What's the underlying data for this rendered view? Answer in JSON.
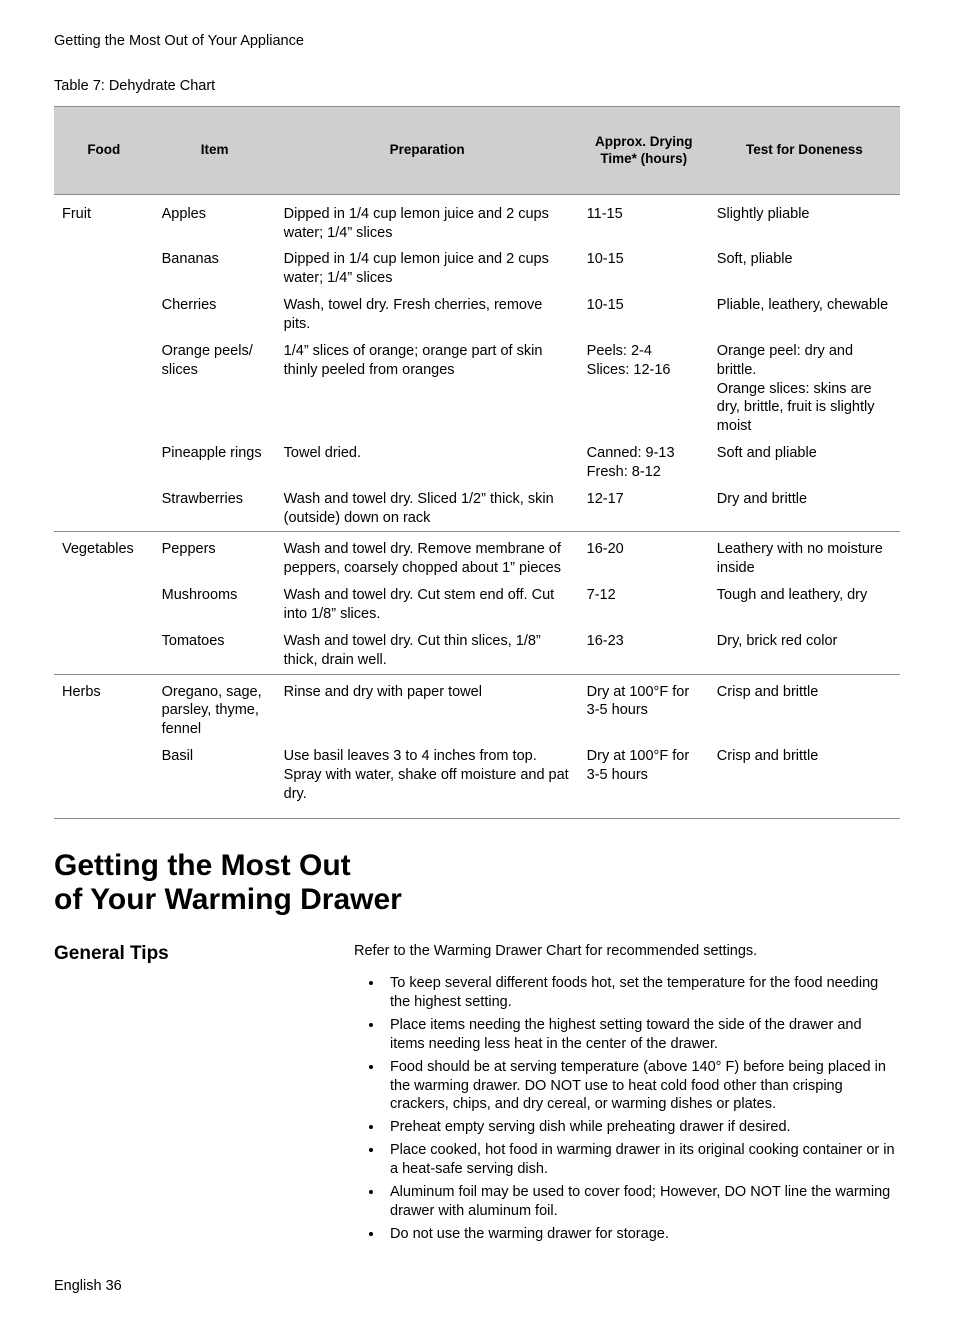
{
  "running_header": "Getting the Most Out of Your Appliance",
  "table_caption": "Table 7: Dehydrate Chart",
  "table": {
    "columns": [
      "Food",
      "Item",
      "Preparation",
      "Approx. Drying Time* (hours)",
      "Test for Doneness"
    ],
    "groups": [
      {
        "food": "Fruit",
        "rows": [
          {
            "item": "Apples",
            "prep": "Dipped in 1/4 cup lemon juice and 2 cups water; 1/4” slices",
            "time": "11-15",
            "done": "Slightly pliable"
          },
          {
            "item": "Bananas",
            "prep": "Dipped in 1/4 cup lemon juice and 2 cups water; 1/4” slices",
            "time": "10-15",
            "done": "Soft, pliable"
          },
          {
            "item": "Cherries",
            "prep": "Wash, towel dry. Fresh cherries, remove pits.",
            "time": "10-15",
            "done": "Pliable, leathery, chewable"
          },
          {
            "item": "Orange peels/ slices",
            "prep": "1/4” slices of orange; orange part of skin thinly peeled from oranges",
            "time": "Peels: 2-4\nSlices: 12-16",
            "done": "Orange peel: dry and brittle.\nOrange slices: skins are dry, brittle, fruit is slightly moist"
          },
          {
            "item": "Pineapple rings",
            "prep": "Towel dried.",
            "time": "Canned: 9-13\nFresh: 8-12",
            "done": "Soft and pliable"
          },
          {
            "item": "Strawberries",
            "prep": "Wash and towel dry. Sliced 1/2” thick, skin (outside) down on rack",
            "time": "12-17",
            "done": "Dry and brittle"
          }
        ]
      },
      {
        "food": "Vegetables",
        "rows": [
          {
            "item": "Peppers",
            "prep": "Wash and towel dry. Remove membrane of peppers, coarsely chopped about 1” pieces",
            "time": "16-20",
            "done": "Leathery with no moisture inside"
          },
          {
            "item": "Mushrooms",
            "prep": "Wash and towel dry. Cut stem end off. Cut into 1/8” slices.",
            "time": "7-12",
            "done": "Tough and leathery, dry"
          },
          {
            "item": "Tomatoes",
            "prep": "Wash and towel dry. Cut thin slices, 1/8” thick, drain well.",
            "time": "16-23",
            "done": "Dry, brick red color"
          }
        ]
      },
      {
        "food": "Herbs",
        "rows": [
          {
            "item": "Oregano, sage, parsley, thyme, fennel",
            "prep": "Rinse and dry with paper towel",
            "time": "Dry at 100°F for 3-5 hours",
            "done": "Crisp and brittle"
          },
          {
            "item": "Basil",
            "prep": "Use basil leaves 3 to 4 inches from top. Spray with water, shake off moisture and pat dry.",
            "time": "Dry at 100°F for 3-5 hours",
            "done": "Crisp and brittle"
          }
        ]
      }
    ]
  },
  "section_title": "Getting the Most Out\nof Your Warming Drawer",
  "subheading": "General Tips",
  "intro_para": "Refer to the Warming Drawer Chart for recommended settings.",
  "bullets": [
    "To keep several different foods hot, set the temperature for the food needing the highest setting.",
    "Place items needing the highest setting toward the side of the drawer and items needing less heat in the center of the drawer.",
    "Food should be at serving temperature (above 140° F) before being placed in the warming drawer. DO NOT use to heat cold food other than crisping crackers, chips, and dry cereal, or warming dishes or plates.",
    "Preheat empty serving dish while preheating drawer if desired.",
    "Place cooked, hot food in warming drawer in its original cooking container or in a heat-safe serving dish.",
    "Aluminum foil may be used to cover food; However, DO NOT line the warming drawer with aluminum foil.",
    "Do not use the warming drawer for storage."
  ],
  "footer": "English 36"
}
